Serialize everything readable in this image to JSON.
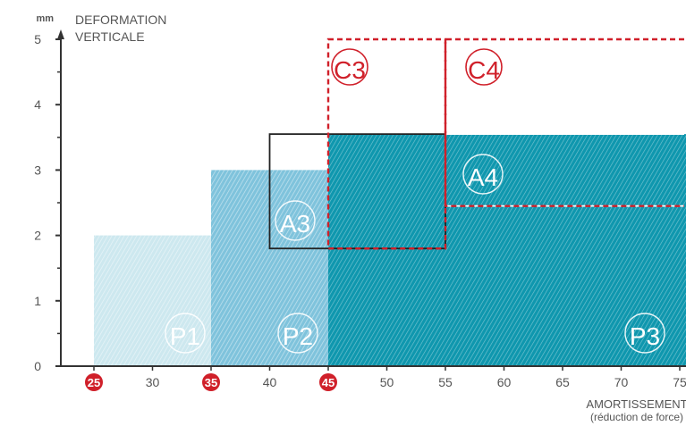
{
  "chart_data": {
    "type": "area",
    "y_unit": "mm",
    "ylabel_lines": [
      "DEFORMATION",
      "VERTICALE"
    ],
    "xlabel_lines": [
      "AMORTISSEMENT",
      "(réduction de force)"
    ],
    "xlim": [
      20,
      76
    ],
    "ylim": [
      0,
      5.3
    ],
    "x_ticks": [
      25,
      30,
      35,
      40,
      45,
      50,
      55,
      60,
      65,
      70,
      75
    ],
    "x_ticks_highlighted": [
      25,
      35,
      45
    ],
    "y_ticks": [
      0,
      1,
      2,
      3,
      4,
      5
    ],
    "highlight_color": "#d0202a",
    "zones": [
      {
        "label": "P1",
        "x": [
          25,
          35
        ],
        "y": [
          0,
          2.0
        ],
        "color": "#cde8ef"
      },
      {
        "label": "P2",
        "x": [
          35,
          45
        ],
        "y": [
          0,
          3.0
        ],
        "color": "#7fc3dc"
      },
      {
        "label": "P3",
        "x": [
          45,
          76
        ],
        "y": [
          0,
          3.55
        ],
        "color": "#0f97ae"
      }
    ],
    "outlines": [
      {
        "label": "A3",
        "x": [
          40,
          55
        ],
        "y": [
          1.8,
          3.55
        ],
        "style": "solid",
        "color": "#222222"
      },
      {
        "label": "A4",
        "x": [
          55,
          76
        ],
        "y": [
          2.45,
          3.55
        ],
        "style": "solid-white",
        "color": "#ffffff"
      },
      {
        "label": "C3",
        "x": [
          45,
          55
        ],
        "y": [
          1.8,
          5.0
        ],
        "style": "dashed",
        "color": "#d0202a"
      },
      {
        "label": "C4",
        "x": [
          55,
          76
        ],
        "y": [
          2.45,
          5.0
        ],
        "style": "dashed",
        "color": "#d0202a"
      }
    ]
  }
}
